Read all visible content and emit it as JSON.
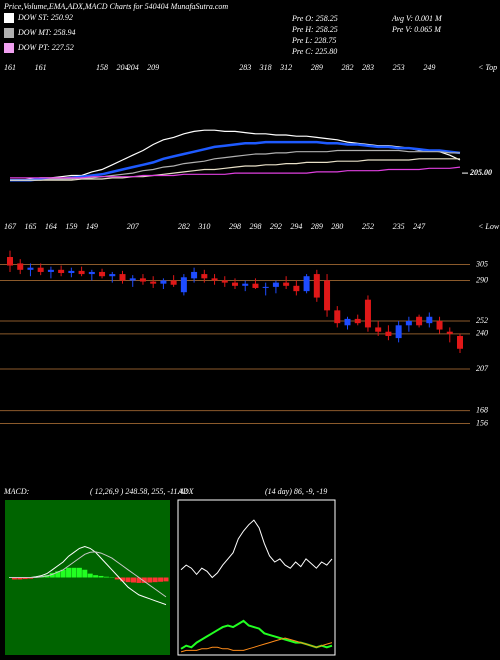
{
  "header": {
    "title": "Price,Volume,EMA,ADX,MACD Charts for 540404  MunafaSutra.com",
    "legend": [
      {
        "label": "DOW ST: 250.92",
        "color": "#ffffff"
      },
      {
        "label": "DOW MT: 258.94",
        "color": "#b0b0b0"
      },
      {
        "label": "DOW PT: 227.52",
        "color": "#f0a0f0"
      }
    ],
    "stats_left": [
      "Pre  O: 258.25",
      "Pre  H: 258.25",
      "Pre  L: 228.75",
      "Pre  C: 225.80"
    ],
    "stats_right": [
      "Avg V: 0.001 M",
      "Pre  V: 0.065 M"
    ]
  },
  "chart_data": [
    {
      "type": "line",
      "ylim": [
        195,
        300
      ],
      "yticks": [
        {
          "value": 205,
          "label": "205.00"
        }
      ],
      "note": "< Top",
      "high_labels": [
        "161",
        null,
        null,
        "161",
        null,
        null,
        null,
        null,
        null,
        "158",
        null,
        "204",
        "204",
        null,
        "209",
        null,
        null,
        null,
        null,
        null,
        null,
        null,
        null,
        "283",
        null,
        "318",
        null,
        "312",
        null,
        null,
        "289",
        null,
        null,
        "282",
        null,
        "283",
        null,
        null,
        "253",
        null,
        null,
        "249",
        null,
        null,
        null
      ],
      "series": [
        {
          "color": "#ffffff",
          "values": [
            199,
            199,
            200,
            201,
            201,
            202,
            203,
            203,
            206,
            208,
            212,
            216,
            220,
            224,
            229,
            233,
            235,
            238,
            240,
            241,
            241,
            240,
            240,
            239,
            238,
            238,
            237,
            237,
            236,
            236,
            235,
            234,
            233,
            231,
            230,
            229,
            228,
            228,
            227,
            226,
            224,
            224,
            223,
            220,
            216
          ]
        },
        {
          "color": "#1e5aff",
          "values": [
            199,
            199,
            199,
            200,
            200,
            200,
            201,
            202,
            203,
            204,
            206,
            208,
            210,
            212,
            214,
            217,
            219,
            221,
            223,
            225,
            227,
            228,
            229,
            230,
            230,
            231,
            231,
            231,
            231,
            231,
            231,
            230,
            230,
            229,
            229,
            228,
            227,
            227,
            226,
            226,
            225,
            224,
            224,
            223,
            222
          ]
        },
        {
          "color": "#b0b0b0",
          "values": [
            199,
            199,
            199,
            199,
            200,
            200,
            200,
            201,
            201,
            202,
            203,
            204,
            205,
            207,
            208,
            210,
            211,
            213,
            214,
            215,
            217,
            218,
            219,
            220,
            221,
            221,
            222,
            222,
            223,
            223,
            223,
            223,
            224,
            224,
            224,
            224,
            224,
            224,
            224,
            223,
            223,
            223,
            223,
            222,
            222
          ]
        },
        {
          "color": "#e8e0c8",
          "values": [
            199,
            199,
            199,
            199,
            199,
            199,
            199,
            200,
            200,
            200,
            201,
            201,
            202,
            202,
            203,
            204,
            205,
            206,
            207,
            208,
            208,
            209,
            210,
            211,
            211,
            212,
            212,
            213,
            213,
            214,
            214,
            214,
            215,
            215,
            215,
            216,
            216,
            216,
            216,
            216,
            217,
            217,
            217,
            217,
            217
          ]
        },
        {
          "color": "#e040e0",
          "values": [
            201,
            201,
            201,
            201,
            201,
            201,
            201,
            201,
            202,
            202,
            202,
            202,
            202,
            203,
            203,
            203,
            203,
            204,
            204,
            204,
            204,
            204,
            205,
            205,
            205,
            205,
            205,
            205,
            205,
            205,
            206,
            206,
            206,
            207,
            207,
            207,
            207,
            208,
            208,
            208,
            208,
            209,
            209,
            209,
            210
          ]
        }
      ]
    },
    {
      "type": "candlestick",
      "ylim": [
        103,
        342
      ],
      "yticks": [
        305,
        290,
        252,
        240,
        207,
        168,
        156
      ],
      "note": "< Low",
      "up_color": "#1e4cff",
      "down_color": "#e01818",
      "grid_color": "#8b5a2b",
      "low_labels": [
        "167",
        null,
        "165",
        null,
        "164",
        null,
        "159",
        null,
        "149",
        null,
        null,
        null,
        "207",
        null,
        null,
        null,
        null,
        "282",
        null,
        "310",
        null,
        null,
        "298",
        null,
        "298",
        null,
        "292",
        null,
        "294",
        null,
        "289",
        null,
        "280",
        null,
        null,
        "252",
        null,
        null,
        "235",
        null,
        "247",
        null,
        null,
        null,
        null
      ],
      "open": [
        312,
        306,
        300,
        302,
        298,
        300,
        297,
        299,
        296,
        298,
        294,
        296,
        290,
        292,
        289,
        287,
        290,
        279,
        292,
        296,
        292,
        290,
        288,
        285,
        287,
        283,
        284,
        288,
        285,
        280,
        296,
        290,
        262,
        248,
        254,
        272,
        246,
        242,
        236,
        248,
        256,
        250,
        252,
        242,
        238
      ],
      "high": [
        318,
        310,
        306,
        306,
        303,
        304,
        302,
        303,
        300,
        301,
        298,
        299,
        295,
        296,
        294,
        292,
        295,
        296,
        302,
        300,
        296,
        294,
        292,
        290,
        292,
        288,
        290,
        294,
        290,
        296,
        300,
        296,
        266,
        256,
        258,
        276,
        252,
        248,
        252,
        256,
        258,
        260,
        256,
        246,
        240
      ],
      "low": [
        298,
        296,
        294,
        295,
        292,
        294,
        293,
        294,
        290,
        292,
        288,
        287,
        284,
        286,
        283,
        282,
        284,
        276,
        288,
        288,
        286,
        284,
        282,
        280,
        282,
        276,
        278,
        282,
        276,
        278,
        270,
        256,
        246,
        244,
        248,
        242,
        238,
        234,
        232,
        242,
        246,
        246,
        240,
        232,
        222
      ],
      "close": [
        304,
        300,
        302,
        298,
        300,
        297,
        299,
        296,
        298,
        294,
        296,
        290,
        292,
        289,
        287,
        290,
        286,
        293,
        298,
        292,
        290,
        288,
        285,
        287,
        283,
        284,
        288,
        285,
        280,
        294,
        274,
        262,
        250,
        254,
        250,
        246,
        242,
        238,
        248,
        252,
        248,
        256,
        244,
        240,
        226
      ]
    },
    {
      "type": "macd",
      "title": "MACD:",
      "params": "( 12,26,9 ) 248.58,  255,  -11.42",
      "ylim": [
        -20,
        20
      ],
      "bg": "#006400",
      "series": [
        {
          "color": "#ffffff",
          "values": [
            0,
            0,
            0,
            0,
            0,
            0.2,
            0.5,
            1,
            2,
            3,
            4,
            5.5,
            6.5,
            7.5,
            8,
            7.5,
            6.5,
            5,
            3.5,
            2,
            0.5,
            -1,
            -2.5,
            -3.5,
            -4.5,
            -5,
            -5.5,
            -6,
            -6.5,
            -7
          ]
        },
        {
          "color": "#c8c8c8",
          "values": [
            0,
            0,
            0,
            0,
            0,
            0,
            0.2,
            0.4,
            0.8,
            1.4,
            2,
            3,
            4,
            5,
            6,
            6.5,
            6.6,
            6.3,
            5.7,
            5,
            4,
            3,
            2,
            1,
            0,
            -1,
            -2,
            -3,
            -4,
            -5
          ]
        }
      ],
      "histogram": [
        0,
        -0.5,
        -0.5,
        -0.4,
        -0.3,
        0.2,
        0.3,
        0.6,
        1.2,
        1.6,
        2,
        2.5,
        2.5,
        2.5,
        2,
        1,
        0.6,
        0.4,
        0.2,
        0.1,
        -0.5,
        -1,
        -1.2,
        -1.3,
        -1.4,
        -1.4,
        -1.3,
        -1.2,
        -1.1,
        -1
      ],
      "up_color": "#22ff22",
      "down_color": "#ff3333"
    },
    {
      "type": "adx",
      "title": "ADX",
      "params": "(14  day) 86,  -9,  -19",
      "ylim": [
        0,
        100
      ],
      "series": [
        {
          "color": "#ffffff",
          "values": [
            55,
            58,
            56,
            52,
            56,
            54,
            50,
            53,
            58,
            62,
            66,
            75,
            80,
            84,
            87,
            82,
            72,
            64,
            60,
            62,
            58,
            56,
            60,
            57,
            62,
            59,
            56,
            60,
            58,
            62
          ]
        },
        {
          "color": "#22ff22",
          "values": [
            4,
            6,
            5,
            8,
            10,
            12,
            14,
            16,
            18,
            19,
            18,
            20,
            22,
            19,
            18,
            17,
            14,
            13,
            12,
            11,
            10,
            9,
            8,
            8,
            7,
            6,
            5,
            6,
            5,
            6
          ]
        },
        {
          "color": "#ff8c1a",
          "values": [
            2,
            3,
            3,
            3,
            4,
            4,
            5,
            5,
            4,
            4,
            3,
            3,
            3,
            4,
            5,
            6,
            7,
            8,
            9,
            10,
            11,
            10,
            9,
            8,
            7,
            6,
            5,
            6,
            7,
            8
          ]
        }
      ]
    }
  ]
}
